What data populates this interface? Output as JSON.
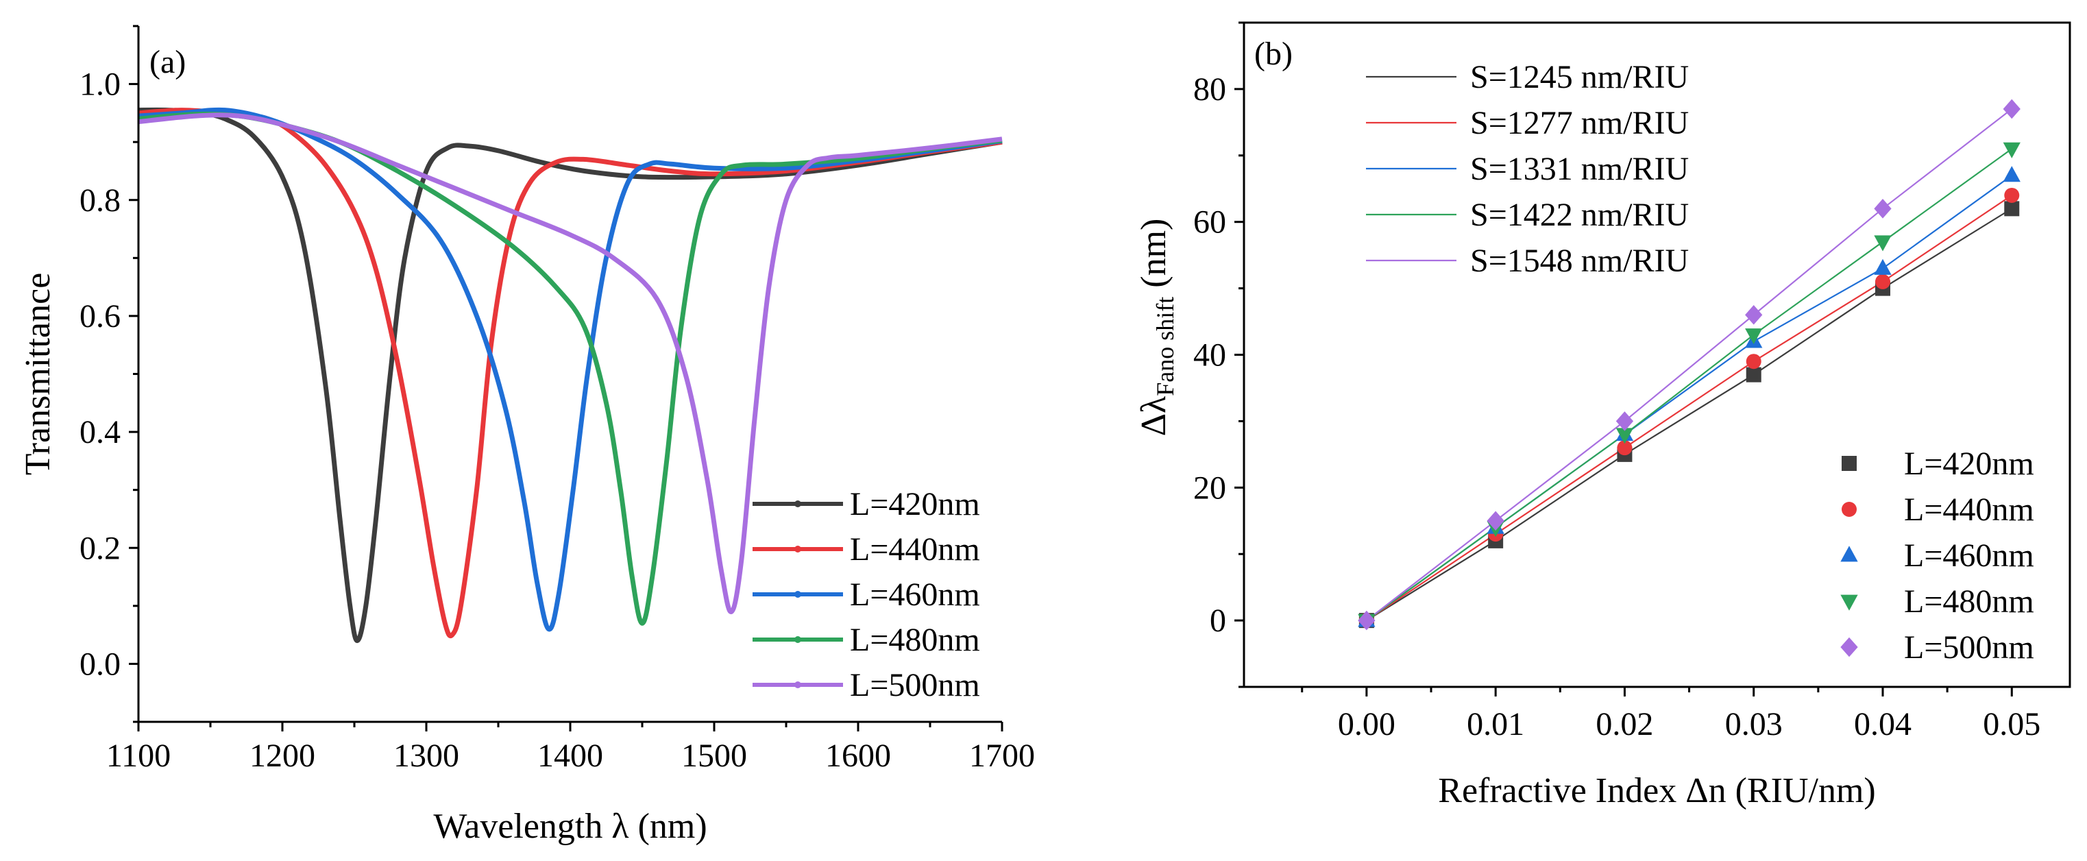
{
  "colors": {
    "L=420nm": "#3d3d3d",
    "L=440nm": "#e8373a",
    "L=460nm": "#1f6fd6",
    "L=480nm": "#2ea35a",
    "L=500nm": "#a86fe0"
  },
  "chart_data": [
    {
      "panel": "(a)",
      "type": "line",
      "xlabel": "Wavelength λ (nm)",
      "ylabel": "Transmittance",
      "xlim": [
        1100,
        1700
      ],
      "ylim": [
        -0.1,
        1.1
      ],
      "xticks": [
        "1100",
        "1200",
        "1300",
        "1400",
        "1500",
        "1600",
        "1700"
      ],
      "yticks": [
        "0.0",
        "0.2",
        "0.4",
        "0.6",
        "0.8",
        "1.0"
      ],
      "legend_position": "bottom-right",
      "series": [
        {
          "name": "L=420nm",
          "dip_wavelength": 1252,
          "dip_transmittance": 0.04,
          "points": [
            [
              1100,
              0.955
            ],
            [
              1120,
              0.955
            ],
            [
              1140,
              0.952
            ],
            [
              1160,
              0.94
            ],
            [
              1180,
              0.91
            ],
            [
              1200,
              0.84
            ],
            [
              1215,
              0.72
            ],
            [
              1230,
              0.48
            ],
            [
              1240,
              0.25
            ],
            [
              1247,
              0.1
            ],
            [
              1252,
              0.04
            ],
            [
              1258,
              0.1
            ],
            [
              1265,
              0.25
            ],
            [
              1275,
              0.5
            ],
            [
              1285,
              0.7
            ],
            [
              1300,
              0.85
            ],
            [
              1315,
              0.89
            ],
            [
              1330,
              0.893
            ],
            [
              1350,
              0.885
            ],
            [
              1380,
              0.865
            ],
            [
              1410,
              0.85
            ],
            [
              1450,
              0.84
            ],
            [
              1500,
              0.84
            ],
            [
              1550,
              0.845
            ],
            [
              1600,
              0.86
            ],
            [
              1650,
              0.88
            ],
            [
              1700,
              0.9
            ]
          ]
        },
        {
          "name": "L=440nm",
          "dip_wavelength": 1318,
          "dip_transmittance": 0.05,
          "points": [
            [
              1100,
              0.95
            ],
            [
              1130,
              0.955
            ],
            [
              1160,
              0.95
            ],
            [
              1190,
              0.94
            ],
            [
              1210,
              0.91
            ],
            [
              1230,
              0.86
            ],
            [
              1250,
              0.78
            ],
            [
              1265,
              0.68
            ],
            [
              1280,
              0.52
            ],
            [
              1295,
              0.32
            ],
            [
              1305,
              0.17
            ],
            [
              1313,
              0.07
            ],
            [
              1318,
              0.05
            ],
            [
              1324,
              0.1
            ],
            [
              1335,
              0.3
            ],
            [
              1345,
              0.55
            ],
            [
              1358,
              0.74
            ],
            [
              1372,
              0.83
            ],
            [
              1390,
              0.865
            ],
            [
              1410,
              0.87
            ],
            [
              1440,
              0.86
            ],
            [
              1470,
              0.85
            ],
            [
              1500,
              0.845
            ],
            [
              1550,
              0.85
            ],
            [
              1600,
              0.865
            ],
            [
              1650,
              0.883
            ],
            [
              1700,
              0.9
            ]
          ]
        },
        {
          "name": "L=460nm",
          "dip_wavelength": 1385,
          "dip_transmittance": 0.06,
          "points": [
            [
              1100,
              0.945
            ],
            [
              1130,
              0.95
            ],
            [
              1160,
              0.955
            ],
            [
              1190,
              0.94
            ],
            [
              1220,
              0.91
            ],
            [
              1250,
              0.87
            ],
            [
              1280,
              0.81
            ],
            [
              1310,
              0.73
            ],
            [
              1335,
              0.6
            ],
            [
              1355,
              0.44
            ],
            [
              1368,
              0.28
            ],
            [
              1377,
              0.14
            ],
            [
              1385,
              0.06
            ],
            [
              1392,
              0.12
            ],
            [
              1402,
              0.3
            ],
            [
              1412,
              0.5
            ],
            [
              1425,
              0.7
            ],
            [
              1440,
              0.83
            ],
            [
              1455,
              0.862
            ],
            [
              1470,
              0.862
            ],
            [
              1500,
              0.855
            ],
            [
              1550,
              0.855
            ],
            [
              1600,
              0.868
            ],
            [
              1650,
              0.885
            ],
            [
              1700,
              0.902
            ]
          ]
        },
        {
          "name": "L=480nm",
          "dip_wavelength": 1450,
          "dip_transmittance": 0.07,
          "points": [
            [
              1100,
              0.94
            ],
            [
              1140,
              0.948
            ],
            [
              1170,
              0.945
            ],
            [
              1200,
              0.93
            ],
            [
              1240,
              0.9
            ],
            [
              1280,
              0.85
            ],
            [
              1320,
              0.79
            ],
            [
              1360,
              0.72
            ],
            [
              1390,
              0.65
            ],
            [
              1410,
              0.58
            ],
            [
              1425,
              0.45
            ],
            [
              1435,
              0.3
            ],
            [
              1443,
              0.15
            ],
            [
              1450,
              0.07
            ],
            [
              1457,
              0.15
            ],
            [
              1467,
              0.35
            ],
            [
              1477,
              0.58
            ],
            [
              1490,
              0.77
            ],
            [
              1505,
              0.845
            ],
            [
              1520,
              0.86
            ],
            [
              1550,
              0.862
            ],
            [
              1600,
              0.872
            ],
            [
              1650,
              0.888
            ],
            [
              1700,
              0.903
            ]
          ]
        },
        {
          "name": "L=500nm",
          "dip_wavelength": 1512,
          "dip_transmittance": 0.09,
          "points": [
            [
              1100,
              0.935
            ],
            [
              1140,
              0.945
            ],
            [
              1170,
              0.945
            ],
            [
              1200,
              0.93
            ],
            [
              1240,
              0.9
            ],
            [
              1280,
              0.86
            ],
            [
              1320,
              0.82
            ],
            [
              1360,
              0.78
            ],
            [
              1400,
              0.74
            ],
            [
              1430,
              0.7
            ],
            [
              1460,
              0.63
            ],
            [
              1480,
              0.5
            ],
            [
              1495,
              0.32
            ],
            [
              1505,
              0.16
            ],
            [
              1512,
              0.09
            ],
            [
              1519,
              0.18
            ],
            [
              1528,
              0.42
            ],
            [
              1538,
              0.65
            ],
            [
              1550,
              0.8
            ],
            [
              1565,
              0.86
            ],
            [
              1580,
              0.873
            ],
            [
              1600,
              0.877
            ],
            [
              1650,
              0.89
            ],
            [
              1700,
              0.905
            ]
          ]
        }
      ]
    },
    {
      "panel": "(b)",
      "type": "scatter",
      "xlabel": "Refractive Index Δn (RIU/nm)",
      "ylabel_main": "Δλ",
      "ylabel_subscript": "Fano shift",
      "ylabel_unit": " (nm)",
      "xlim": [
        -0.0095,
        0.0545
      ],
      "ylim": [
        -10,
        90
      ],
      "xticks": [
        "0.00",
        "0.01",
        "0.02",
        "0.03",
        "0.04",
        "0.05"
      ],
      "yticks": [
        "0",
        "20",
        "40",
        "60",
        "80"
      ],
      "fit_legend_position": "top-left",
      "marker_legend_position": "bottom-right",
      "x": [
        0.0,
        0.01,
        0.02,
        0.03,
        0.04,
        0.05
      ],
      "series": [
        {
          "name": "L=420nm",
          "fit_label": "S=1245 nm/RIU",
          "marker": "square",
          "values": [
            0,
            12,
            25,
            37,
            50,
            62
          ]
        },
        {
          "name": "L=440nm",
          "fit_label": "S=1277 nm/RIU",
          "marker": "circle",
          "values": [
            0,
            13,
            26,
            39,
            51,
            64
          ]
        },
        {
          "name": "L=460nm",
          "fit_label": "S=1331 nm/RIU",
          "marker": "triangle-up",
          "values": [
            0,
            14,
            28,
            42,
            53,
            67
          ]
        },
        {
          "name": "L=480nm",
          "fit_label": "S=1422 nm/RIU",
          "marker": "triangle-down",
          "values": [
            0,
            14,
            28,
            43,
            57,
            71
          ]
        },
        {
          "name": "L=500nm",
          "fit_label": "S=1548 nm/RIU",
          "marker": "diamond",
          "values": [
            0,
            15,
            30,
            46,
            62,
            77
          ]
        }
      ]
    }
  ]
}
